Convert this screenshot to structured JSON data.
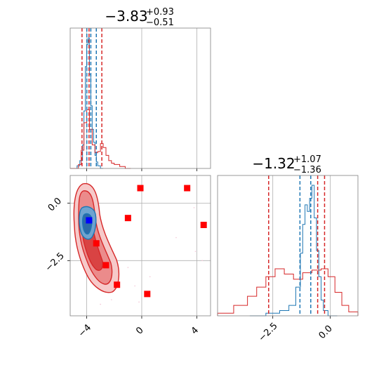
{
  "colors": {
    "posterior_a": "#1f77b4",
    "posterior_b": "#d62728",
    "truth_marker": "#0000ff",
    "sample_marker": "#ff0000",
    "grid": "#b0b0b0",
    "frame": "#808080"
  },
  "chart_data": [
    {
      "type": "histogram",
      "panel": "top-left",
      "title": {
        "value": "−3.83",
        "upper": "+0.93",
        "lower": "−0.51"
      },
      "x": {
        "ylim_range": [
          -5.2,
          5.0
        ],
        "grid": true,
        "ticks": [
          -4,
          0,
          4
        ],
        "tick_labels_shown": false
      },
      "series": [
        {
          "color": "#1f77b4",
          "bin_edges": [
            -5.2,
            -4.7,
            -4.5,
            -4.3,
            -4.2,
            -4.1,
            -4.0,
            -3.9,
            -3.8,
            -3.7,
            -3.6,
            -3.5,
            -3.4,
            -3.3,
            -3.2,
            -3.0,
            -2.8
          ],
          "counts": [
            0,
            0.02,
            0.06,
            0.18,
            0.44,
            0.78,
            0.95,
            1.0,
            0.72,
            0.48,
            0.3,
            0.2,
            0.1,
            0.05,
            0.02,
            0
          ]
        },
        {
          "color": "#d62728",
          "bin_edges": [
            -5.2,
            -4.6,
            -4.4,
            -4.2,
            -4.0,
            -3.8,
            -3.6,
            -3.4,
            -3.2,
            -3.0,
            -2.8,
            -2.6,
            -2.4,
            -2.2,
            -2.0,
            -1.6,
            -1.2,
            -0.8
          ],
          "counts": [
            0,
            0.03,
            0.14,
            0.35,
            0.45,
            0.3,
            0.18,
            0.12,
            0.13,
            0.19,
            0.16,
            0.1,
            0.06,
            0.04,
            0.03,
            0.015,
            0
          ]
        }
      ],
      "vlines": [
        {
          "x": -4.34,
          "color": "#d62728"
        },
        {
          "x": -3.83,
          "color": "#d62728"
        },
        {
          "x": -2.9,
          "color": "#d62728"
        },
        {
          "x": -3.99,
          "color": "#1f77b4"
        },
        {
          "x": -3.7,
          "color": "#1f77b4"
        },
        {
          "x": -3.3,
          "color": "#1f77b4"
        }
      ]
    },
    {
      "type": "scatter",
      "panel": "bottom-left",
      "xlim": [
        -5.2,
        5.0
      ],
      "ylim": [
        -4.9,
        1.2
      ],
      "grid": true,
      "x_ticks": [
        -4,
        0,
        4
      ],
      "y_ticks": [
        0.0,
        -2.5
      ],
      "x_tick_labels": [
        "−4",
        "0",
        "4"
      ],
      "y_tick_labels": [
        "0.0",
        "−2.5"
      ],
      "contours": [
        {
          "color": "#1f77b4",
          "level": "outer",
          "fill": "#c6dbef"
        },
        {
          "color": "#d62728",
          "level": "outer",
          "fill": "#f4c2c2"
        }
      ],
      "sample_points": [
        {
          "x": -0.1,
          "y": 0.65
        },
        {
          "x": 3.3,
          "y": 0.65
        },
        {
          "x": -1.0,
          "y": -0.65
        },
        {
          "x": 4.5,
          "y": -0.95
        },
        {
          "x": -3.3,
          "y": -1.75
        },
        {
          "x": -2.6,
          "y": -2.7
        },
        {
          "x": -1.8,
          "y": -3.55
        },
        {
          "x": 0.4,
          "y": -3.95
        }
      ],
      "truth_point": {
        "x": -3.83,
        "y": -0.75
      }
    },
    {
      "type": "histogram",
      "panel": "bottom-right",
      "title": {
        "value": "−1.32",
        "upper": "+1.07",
        "lower": "−1.36"
      },
      "xlim": [
        -4.9,
        1.2
      ],
      "x_ticks": [
        -2.5,
        0.0
      ],
      "x_tick_labels": [
        "−2.5",
        "0.0"
      ],
      "grid": true,
      "series": [
        {
          "color": "#1f77b4",
          "bin_edges": [
            -3.5,
            -2.8,
            -2.2,
            -1.8,
            -1.5,
            -1.3,
            -1.2,
            -1.1,
            -1.0,
            -0.9,
            -0.8,
            -0.7,
            -0.6,
            -0.5,
            -0.4,
            -0.3,
            -0.1,
            0.3
          ],
          "counts": [
            0,
            0.02,
            0.04,
            0.08,
            0.22,
            0.48,
            0.7,
            0.85,
            0.8,
            0.9,
            1.0,
            0.75,
            0.5,
            0.3,
            0.12,
            0.04,
            0
          ]
        },
        {
          "color": "#d62728",
          "bin_edges": [
            -4.9,
            -4.2,
            -3.6,
            -3.2,
            -2.8,
            -2.4,
            -2.0,
            -1.6,
            -1.2,
            -0.8,
            -0.4,
            -0.1,
            0.2,
            0.5,
            0.8,
            1.2
          ],
          "counts": [
            0.02,
            0.08,
            0.15,
            0.22,
            0.3,
            0.36,
            0.32,
            0.28,
            0.33,
            0.35,
            0.36,
            0.3,
            0.18,
            0.08,
            0.03
          ]
        }
      ],
      "vlines": [
        {
          "x": -2.68,
          "color": "#d62728"
        },
        {
          "x": -1.32,
          "color": "#1f77b4"
        },
        {
          "x": -0.55,
          "color": "#d62728"
        },
        {
          "x": -0.85,
          "color": "#1f77b4"
        },
        {
          "x": -0.25,
          "color": "#d62728"
        }
      ]
    }
  ]
}
